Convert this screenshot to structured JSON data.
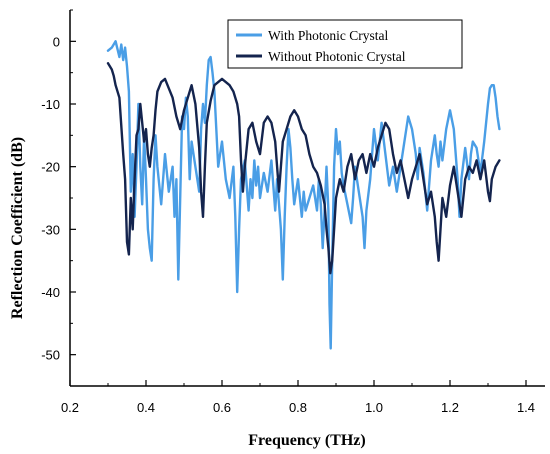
{
  "chart_data": {
    "type": "line",
    "title": "",
    "xlabel": "Frequency (THz)",
    "ylabel": "Reflection Coefficient (dB)",
    "xlim": [
      0.2,
      1.45
    ],
    "ylim": [
      -55,
      5
    ],
    "xticks": [
      0.2,
      0.4,
      0.6,
      0.8,
      1.0,
      1.2,
      1.4
    ],
    "xtick_labels": [
      "0.2",
      "0.4",
      "0.6",
      "0.8",
      "1.0",
      "1.2",
      "1.4"
    ],
    "yticks": [
      0,
      -10,
      -20,
      -30,
      -40,
      -50
    ],
    "ytick_labels": [
      "0",
      "-10",
      "-20",
      "-30",
      "-40",
      "-50"
    ],
    "grid": false,
    "legend_position": "top-right",
    "series": [
      {
        "name": "With Photonic Crystal",
        "color": "#4a9ee6",
        "points": [
          [
            0.3,
            -1.5
          ],
          [
            0.31,
            -1.0
          ],
          [
            0.32,
            0.0
          ],
          [
            0.33,
            -2.5
          ],
          [
            0.335,
            -0.5
          ],
          [
            0.34,
            -3.0
          ],
          [
            0.345,
            -1.0
          ],
          [
            0.35,
            -4.0
          ],
          [
            0.355,
            -8.0
          ],
          [
            0.36,
            -24.0
          ],
          [
            0.365,
            -18.0
          ],
          [
            0.37,
            -28.0
          ],
          [
            0.375,
            -20.0
          ],
          [
            0.38,
            -10.0
          ],
          [
            0.385,
            -20.0
          ],
          [
            0.39,
            -26.0
          ],
          [
            0.395,
            -15.0
          ],
          [
            0.4,
            -22.0
          ],
          [
            0.405,
            -30.0
          ],
          [
            0.41,
            -33.0
          ],
          [
            0.415,
            -35.0
          ],
          [
            0.42,
            -22.0
          ],
          [
            0.425,
            -15.0
          ],
          [
            0.43,
            -20.0
          ],
          [
            0.44,
            -26.0
          ],
          [
            0.45,
            -18.0
          ],
          [
            0.46,
            -24.0
          ],
          [
            0.47,
            -20.0
          ],
          [
            0.475,
            -28.0
          ],
          [
            0.48,
            -22.0
          ],
          [
            0.485,
            -38.0
          ],
          [
            0.49,
            -25.0
          ],
          [
            0.495,
            -12.0
          ],
          [
            0.5,
            -14.0
          ],
          [
            0.505,
            -9.0
          ],
          [
            0.51,
            -12.0
          ],
          [
            0.515,
            -22.0
          ],
          [
            0.52,
            -16.0
          ],
          [
            0.53,
            -20.0
          ],
          [
            0.54,
            -24.0
          ],
          [
            0.545,
            -14.0
          ],
          [
            0.55,
            -10.0
          ],
          [
            0.555,
            -13.0
          ],
          [
            0.56,
            -7.0
          ],
          [
            0.565,
            -3.0
          ],
          [
            0.57,
            -2.5
          ],
          [
            0.575,
            -5.0
          ],
          [
            0.58,
            -8.0
          ],
          [
            0.585,
            -14.0
          ],
          [
            0.59,
            -20.0
          ],
          [
            0.6,
            -16.0
          ],
          [
            0.61,
            -22.0
          ],
          [
            0.62,
            -25.0
          ],
          [
            0.63,
            -20.0
          ],
          [
            0.635,
            -28.0
          ],
          [
            0.64,
            -40.0
          ],
          [
            0.645,
            -30.0
          ],
          [
            0.65,
            -22.0
          ],
          [
            0.66,
            -19.0
          ],
          [
            0.665,
            -23.0
          ],
          [
            0.67,
            -27.0
          ],
          [
            0.675,
            -22.0
          ],
          [
            0.68,
            -25.0
          ],
          [
            0.685,
            -19.0
          ],
          [
            0.69,
            -23.0
          ],
          [
            0.695,
            -20.0
          ],
          [
            0.7,
            -25.0
          ],
          [
            0.71,
            -21.0
          ],
          [
            0.72,
            -24.0
          ],
          [
            0.73,
            -19.0
          ],
          [
            0.74,
            -27.0
          ],
          [
            0.745,
            -22.0
          ],
          [
            0.75,
            -26.0
          ],
          [
            0.755,
            -30.0
          ],
          [
            0.76,
            -38.0
          ],
          [
            0.765,
            -28.0
          ],
          [
            0.77,
            -20.0
          ],
          [
            0.775,
            -14.0
          ],
          [
            0.78,
            -17.0
          ],
          [
            0.785,
            -22.0
          ],
          [
            0.79,
            -26.0
          ],
          [
            0.8,
            -22.0
          ],
          [
            0.81,
            -28.0
          ],
          [
            0.815,
            -24.0
          ],
          [
            0.82,
            -27.0
          ],
          [
            0.83,
            -25.0
          ],
          [
            0.84,
            -23.0
          ],
          [
            0.85,
            -27.0
          ],
          [
            0.855,
            -22.0
          ],
          [
            0.86,
            -26.0
          ],
          [
            0.865,
            -33.0
          ],
          [
            0.87,
            -27.0
          ],
          [
            0.875,
            -20.0
          ],
          [
            0.88,
            -27.0
          ],
          [
            0.883,
            -42.0
          ],
          [
            0.886,
            -49.0
          ],
          [
            0.89,
            -35.0
          ],
          [
            0.895,
            -20.0
          ],
          [
            0.9,
            -14.0
          ],
          [
            0.905,
            -18.0
          ],
          [
            0.91,
            -16.0
          ],
          [
            0.915,
            -21.0
          ],
          [
            0.92,
            -23.0
          ],
          [
            0.93,
            -26.0
          ],
          [
            0.94,
            -29.0
          ],
          [
            0.945,
            -25.0
          ],
          [
            0.95,
            -20.0
          ],
          [
            0.96,
            -24.0
          ],
          [
            0.97,
            -28.0
          ],
          [
            0.975,
            -33.0
          ],
          [
            0.98,
            -27.0
          ],
          [
            0.99,
            -22.0
          ],
          [
            1.0,
            -14.0
          ],
          [
            1.01,
            -19.0
          ],
          [
            1.02,
            -13.0
          ],
          [
            1.03,
            -18.0
          ],
          [
            1.04,
            -23.0
          ],
          [
            1.05,
            -20.0
          ],
          [
            1.06,
            -24.0
          ],
          [
            1.07,
            -20.0
          ],
          [
            1.08,
            -16.0
          ],
          [
            1.09,
            -12.0
          ],
          [
            1.1,
            -14.0
          ],
          [
            1.11,
            -18.0
          ],
          [
            1.115,
            -22.0
          ],
          [
            1.12,
            -17.0
          ],
          [
            1.13,
            -21.0
          ],
          [
            1.14,
            -27.0
          ],
          [
            1.15,
            -19.0
          ],
          [
            1.16,
            -15.0
          ],
          [
            1.165,
            -18.0
          ],
          [
            1.17,
            -20.0
          ],
          [
            1.175,
            -16.0
          ],
          [
            1.18,
            -19.0
          ],
          [
            1.19,
            -14.0
          ],
          [
            1.2,
            -11.0
          ],
          [
            1.21,
            -14.0
          ],
          [
            1.22,
            -22.0
          ],
          [
            1.225,
            -28.0
          ],
          [
            1.23,
            -22.0
          ],
          [
            1.24,
            -17.0
          ],
          [
            1.25,
            -22.0
          ],
          [
            1.255,
            -18.0
          ],
          [
            1.26,
            -16.0
          ],
          [
            1.27,
            -17.0
          ],
          [
            1.28,
            -21.0
          ],
          [
            1.29,
            -16.0
          ],
          [
            1.3,
            -10.0
          ],
          [
            1.305,
            -7.5
          ],
          [
            1.31,
            -7.0
          ],
          [
            1.315,
            -7.0
          ],
          [
            1.32,
            -9.0
          ],
          [
            1.325,
            -12.0
          ],
          [
            1.33,
            -14.0
          ]
        ]
      },
      {
        "name": "Without Photonic Crystal",
        "color": "#14244e",
        "points": [
          [
            0.3,
            -3.5
          ],
          [
            0.31,
            -4.5
          ],
          [
            0.315,
            -5.5
          ],
          [
            0.32,
            -7.0
          ],
          [
            0.33,
            -9.0
          ],
          [
            0.34,
            -18.0
          ],
          [
            0.345,
            -22.0
          ],
          [
            0.35,
            -32.0
          ],
          [
            0.355,
            -34.0
          ],
          [
            0.36,
            -25.0
          ],
          [
            0.365,
            -30.0
          ],
          [
            0.37,
            -22.0
          ],
          [
            0.375,
            -15.0
          ],
          [
            0.38,
            -14.0
          ],
          [
            0.385,
            -10.0
          ],
          [
            0.39,
            -13.0
          ],
          [
            0.395,
            -16.0
          ],
          [
            0.4,
            -14.0
          ],
          [
            0.405,
            -18.0
          ],
          [
            0.41,
            -20.0
          ],
          [
            0.415,
            -17.0
          ],
          [
            0.42,
            -15.0
          ],
          [
            0.425,
            -11.0
          ],
          [
            0.43,
            -8.0
          ],
          [
            0.44,
            -6.5
          ],
          [
            0.45,
            -6.0
          ],
          [
            0.46,
            -7.5
          ],
          [
            0.47,
            -9.0
          ],
          [
            0.48,
            -12.0
          ],
          [
            0.49,
            -14.0
          ],
          [
            0.5,
            -11.0
          ],
          [
            0.51,
            -9.0
          ],
          [
            0.52,
            -7.0
          ],
          [
            0.53,
            -10.0
          ],
          [
            0.54,
            -17.0
          ],
          [
            0.545,
            -24.0
          ],
          [
            0.55,
            -28.0
          ],
          [
            0.555,
            -20.0
          ],
          [
            0.56,
            -13.0
          ],
          [
            0.57,
            -9.5
          ],
          [
            0.58,
            -7.0
          ],
          [
            0.59,
            -6.5
          ],
          [
            0.6,
            -6.0
          ],
          [
            0.61,
            -6.5
          ],
          [
            0.62,
            -7.0
          ],
          [
            0.63,
            -8.0
          ],
          [
            0.64,
            -10.0
          ],
          [
            0.645,
            -12.0
          ],
          [
            0.65,
            -19.0
          ],
          [
            0.655,
            -24.0
          ],
          [
            0.66,
            -20.0
          ],
          [
            0.67,
            -14.0
          ],
          [
            0.68,
            -13.0
          ],
          [
            0.69,
            -16.0
          ],
          [
            0.7,
            -18.0
          ],
          [
            0.71,
            -13.0
          ],
          [
            0.72,
            -12.0
          ],
          [
            0.73,
            -13.0
          ],
          [
            0.74,
            -16.0
          ],
          [
            0.745,
            -20.0
          ],
          [
            0.75,
            -24.0
          ],
          [
            0.755,
            -20.0
          ],
          [
            0.76,
            -16.0
          ],
          [
            0.77,
            -14.0
          ],
          [
            0.78,
            -12.0
          ],
          [
            0.79,
            -11.0
          ],
          [
            0.8,
            -12.0
          ],
          [
            0.81,
            -14.0
          ],
          [
            0.82,
            -15.0
          ],
          [
            0.83,
            -18.0
          ],
          [
            0.84,
            -20.0
          ],
          [
            0.85,
            -21.0
          ],
          [
            0.86,
            -23.0
          ],
          [
            0.87,
            -26.0
          ],
          [
            0.875,
            -30.0
          ],
          [
            0.88,
            -33.0
          ],
          [
            0.885,
            -37.0
          ],
          [
            0.89,
            -35.0
          ],
          [
            0.9,
            -25.0
          ],
          [
            0.91,
            -22.0
          ],
          [
            0.92,
            -24.0
          ],
          [
            0.93,
            -20.0
          ],
          [
            0.94,
            -18.0
          ],
          [
            0.95,
            -22.0
          ],
          [
            0.96,
            -19.0
          ],
          [
            0.97,
            -18.0
          ],
          [
            0.98,
            -21.0
          ],
          [
            0.99,
            -18.0
          ],
          [
            1.0,
            -20.0
          ],
          [
            1.01,
            -17.0
          ],
          [
            1.02,
            -15.0
          ],
          [
            1.03,
            -13.0
          ],
          [
            1.04,
            -14.0
          ],
          [
            1.05,
            -18.0
          ],
          [
            1.06,
            -21.0
          ],
          [
            1.07,
            -19.0
          ],
          [
            1.08,
            -22.0
          ],
          [
            1.09,
            -25.0
          ],
          [
            1.1,
            -22.0
          ],
          [
            1.11,
            -20.0
          ],
          [
            1.12,
            -18.0
          ],
          [
            1.13,
            -22.0
          ],
          [
            1.14,
            -26.0
          ],
          [
            1.15,
            -24.0
          ],
          [
            1.16,
            -28.0
          ],
          [
            1.165,
            -32.0
          ],
          [
            1.17,
            -35.0
          ],
          [
            1.175,
            -30.0
          ],
          [
            1.18,
            -25.0
          ],
          [
            1.19,
            -28.0
          ],
          [
            1.2,
            -23.0
          ],
          [
            1.21,
            -20.0
          ],
          [
            1.22,
            -24.0
          ],
          [
            1.23,
            -28.0
          ],
          [
            1.24,
            -22.0
          ],
          [
            1.25,
            -20.0
          ],
          [
            1.26,
            -21.0
          ],
          [
            1.27,
            -19.0
          ],
          [
            1.28,
            -22.0
          ],
          [
            1.29,
            -19.0
          ],
          [
            1.3,
            -24.0
          ],
          [
            1.305,
            -25.5
          ],
          [
            1.31,
            -22.0
          ],
          [
            1.32,
            -20.0
          ],
          [
            1.33,
            -19.0
          ]
        ]
      }
    ]
  }
}
